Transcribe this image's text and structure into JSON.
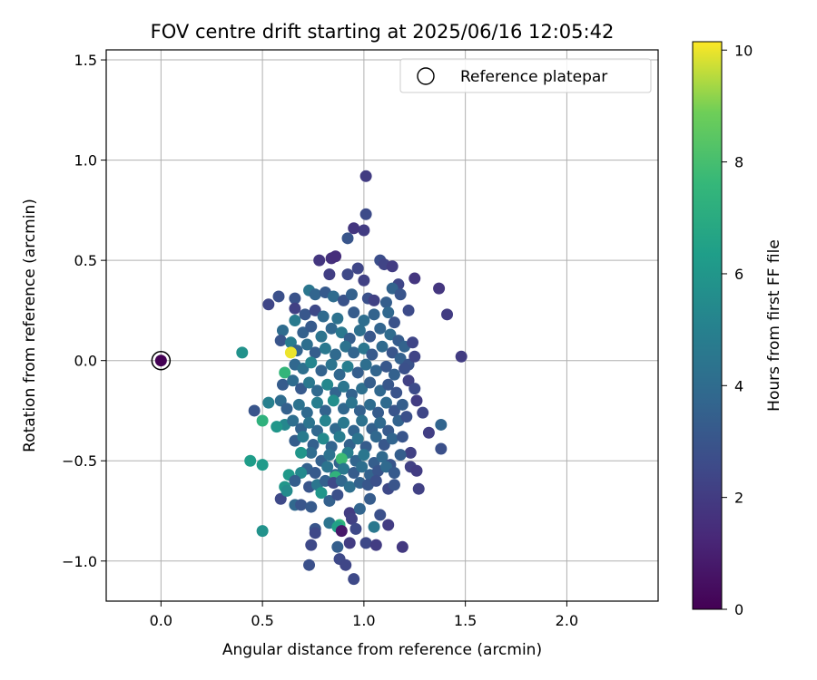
{
  "chart_data": {
    "type": "scatter",
    "title": "FOV centre drift starting at 2025/06/16 12:05:42",
    "xlabel": "Angular distance from reference (arcmin)",
    "ylabel": "Rotation from reference (arcmin)",
    "xlim": [
      -0.27,
      2.45
    ],
    "ylim": [
      -1.2,
      1.55
    ],
    "xticks": [
      0.0,
      0.5,
      1.0,
      1.5,
      2.0
    ],
    "xtick_labels": [
      "0.0",
      "0.5",
      "1.0",
      "1.5",
      "2.0"
    ],
    "yticks": [
      -1.0,
      -0.5,
      0.0,
      0.5,
      1.0,
      1.5
    ],
    "ytick_labels": [
      "−1.0",
      "−0.5",
      "0.0",
      "0.5",
      "1.0",
      "1.5"
    ],
    "grid": true,
    "legend": {
      "placement": "top-right",
      "entries": [
        "Reference platepar"
      ]
    },
    "reference": {
      "x": 0.0,
      "y": 0.0,
      "c": 0.0
    },
    "colorbar": {
      "label": "Hours from first FF file",
      "range": [
        0,
        10.15
      ],
      "ticks": [
        0,
        2,
        4,
        6,
        8,
        10
      ],
      "tick_labels": [
        "0",
        "2",
        "4",
        "6",
        "8",
        "10"
      ],
      "colormap": "viridis"
    },
    "series": [
      {
        "points": [
          [
            0.0,
            0.0,
            0.0
          ],
          [
            1.01,
            0.92,
            2.0
          ],
          [
            1.01,
            0.73,
            2.6
          ],
          [
            1.0,
            0.65,
            2.0
          ],
          [
            0.95,
            0.66,
            1.8
          ],
          [
            0.92,
            0.61,
            3.0
          ],
          [
            0.78,
            0.5,
            1.8
          ],
          [
            0.84,
            0.51,
            1.6
          ],
          [
            0.86,
            0.52,
            1.5
          ],
          [
            1.08,
            0.5,
            2.7
          ],
          [
            1.1,
            0.48,
            2.3
          ],
          [
            1.14,
            0.47,
            2.0
          ],
          [
            0.97,
            0.46,
            2.4
          ],
          [
            0.92,
            0.43,
            2.5
          ],
          [
            0.83,
            0.43,
            2.1
          ],
          [
            1.0,
            0.4,
            2.2
          ],
          [
            1.17,
            0.38,
            2.4
          ],
          [
            1.14,
            0.36,
            3.6
          ],
          [
            1.25,
            0.41,
            1.8
          ],
          [
            1.37,
            0.36,
            1.8
          ],
          [
            1.41,
            0.23,
            2.0
          ],
          [
            1.48,
            0.02,
            2.0
          ],
          [
            0.58,
            0.32,
            2.8
          ],
          [
            0.53,
            0.28,
            2.4
          ],
          [
            0.66,
            0.31,
            2.9
          ],
          [
            0.73,
            0.35,
            4.5
          ],
          [
            0.76,
            0.33,
            3.7
          ],
          [
            0.81,
            0.34,
            3.2
          ],
          [
            0.85,
            0.32,
            4.0
          ],
          [
            0.9,
            0.3,
            2.9
          ],
          [
            0.94,
            0.33,
            3.5
          ],
          [
            1.02,
            0.31,
            2.8
          ],
          [
            1.05,
            0.3,
            2.2
          ],
          [
            1.11,
            0.29,
            3.4
          ],
          [
            1.18,
            0.33,
            3.0
          ],
          [
            1.22,
            0.25,
            2.6
          ],
          [
            0.66,
            0.26,
            2.2
          ],
          [
            0.71,
            0.23,
            3.1
          ],
          [
            0.76,
            0.25,
            2.5
          ],
          [
            0.8,
            0.22,
            3.9
          ],
          [
            0.87,
            0.21,
            4.3
          ],
          [
            0.95,
            0.24,
            3.3
          ],
          [
            1.0,
            0.2,
            4.1
          ],
          [
            1.05,
            0.23,
            3.6
          ],
          [
            1.12,
            0.24,
            3.8
          ],
          [
            1.15,
            0.19,
            2.9
          ],
          [
            0.6,
            0.15,
            4.0
          ],
          [
            0.66,
            0.2,
            4.7
          ],
          [
            0.7,
            0.14,
            3.5
          ],
          [
            0.74,
            0.17,
            3.2
          ],
          [
            0.79,
            0.12,
            4.4
          ],
          [
            0.84,
            0.16,
            3.8
          ],
          [
            0.89,
            0.14,
            4.6
          ],
          [
            0.93,
            0.11,
            3.4
          ],
          [
            0.98,
            0.15,
            4.2
          ],
          [
            1.03,
            0.12,
            3.1
          ],
          [
            1.08,
            0.16,
            3.7
          ],
          [
            1.13,
            0.13,
            4.0
          ],
          [
            1.17,
            0.1,
            3.3
          ],
          [
            1.2,
            0.07,
            3.6
          ],
          [
            1.24,
            0.09,
            2.4
          ],
          [
            0.59,
            0.1,
            3.0
          ],
          [
            0.64,
            0.09,
            4.8
          ],
          [
            0.67,
            0.05,
            3.6
          ],
          [
            0.72,
            0.08,
            4.1
          ],
          [
            0.76,
            0.04,
            3.4
          ],
          [
            0.81,
            0.06,
            4.6
          ],
          [
            0.86,
            0.03,
            3.9
          ],
          [
            0.91,
            0.07,
            4.3
          ],
          [
            0.95,
            0.04,
            3.7
          ],
          [
            1.0,
            0.06,
            4.5
          ],
          [
            1.04,
            0.03,
            3.2
          ],
          [
            1.09,
            0.07,
            3.9
          ],
          [
            1.14,
            0.04,
            3.0
          ],
          [
            1.18,
            0.01,
            3.5
          ],
          [
            1.22,
            -0.02,
            2.9
          ],
          [
            1.25,
            0.02,
            2.3
          ],
          [
            0.4,
            0.04,
            5.8
          ],
          [
            0.64,
            0.04,
            10.0
          ],
          [
            0.61,
            -0.06,
            7.5
          ],
          [
            0.66,
            -0.02,
            3.8
          ],
          [
            0.7,
            -0.04,
            4.2
          ],
          [
            0.74,
            -0.01,
            5.2
          ],
          [
            0.79,
            -0.05,
            3.6
          ],
          [
            0.84,
            -0.02,
            4.4
          ],
          [
            0.88,
            -0.07,
            3.8
          ],
          [
            0.92,
            -0.03,
            4.9
          ],
          [
            0.97,
            -0.06,
            3.4
          ],
          [
            1.01,
            -0.02,
            4.1
          ],
          [
            1.06,
            -0.05,
            3.7
          ],
          [
            1.11,
            -0.03,
            3.1
          ],
          [
            1.15,
            -0.07,
            3.5
          ],
          [
            1.2,
            -0.04,
            2.8
          ],
          [
            0.6,
            -0.12,
            3.3
          ],
          [
            0.65,
            -0.1,
            4.0
          ],
          [
            0.69,
            -0.14,
            3.2
          ],
          [
            0.73,
            -0.11,
            4.6
          ],
          [
            0.77,
            -0.15,
            3.9
          ],
          [
            0.82,
            -0.12,
            5.3
          ],
          [
            0.86,
            -0.16,
            3.7
          ],
          [
            0.9,
            -0.13,
            4.5
          ],
          [
            0.94,
            -0.17,
            3.6
          ],
          [
            0.99,
            -0.14,
            4.2
          ],
          [
            1.03,
            -0.11,
            3.4
          ],
          [
            1.08,
            -0.15,
            3.8
          ],
          [
            1.12,
            -0.12,
            3.1
          ],
          [
            1.16,
            -0.16,
            2.9
          ],
          [
            1.22,
            -0.1,
            2.2
          ],
          [
            1.25,
            -0.14,
            2.6
          ],
          [
            0.53,
            -0.21,
            5.0
          ],
          [
            0.59,
            -0.2,
            4.0
          ],
          [
            0.62,
            -0.24,
            3.5
          ],
          [
            0.68,
            -0.22,
            4.3
          ],
          [
            0.72,
            -0.26,
            3.9
          ],
          [
            0.77,
            -0.21,
            4.9
          ],
          [
            0.81,
            -0.25,
            3.6
          ],
          [
            0.85,
            -0.2,
            5.6
          ],
          [
            0.9,
            -0.24,
            3.8
          ],
          [
            0.94,
            -0.21,
            4.4
          ],
          [
            0.98,
            -0.25,
            3.5
          ],
          [
            1.03,
            -0.22,
            4.0
          ],
          [
            1.07,
            -0.26,
            3.3
          ],
          [
            1.11,
            -0.21,
            3.9
          ],
          [
            1.15,
            -0.25,
            3.0
          ],
          [
            1.19,
            -0.22,
            3.4
          ],
          [
            1.26,
            -0.2,
            2.0
          ],
          [
            0.46,
            -0.25,
            3.0
          ],
          [
            0.61,
            -0.32,
            5.3
          ],
          [
            0.65,
            -0.3,
            4.1
          ],
          [
            0.69,
            -0.34,
            3.6
          ],
          [
            0.73,
            -0.31,
            4.4
          ],
          [
            0.77,
            -0.35,
            3.8
          ],
          [
            0.81,
            -0.3,
            5.1
          ],
          [
            0.86,
            -0.34,
            3.9
          ],
          [
            0.9,
            -0.31,
            4.6
          ],
          [
            0.95,
            -0.35,
            3.7
          ],
          [
            0.99,
            -0.3,
            4.3
          ],
          [
            1.04,
            -0.34,
            3.5
          ],
          [
            1.08,
            -0.31,
            3.9
          ],
          [
            1.12,
            -0.35,
            3.2
          ],
          [
            1.17,
            -0.3,
            3.6
          ],
          [
            1.21,
            -0.28,
            2.8
          ],
          [
            1.29,
            -0.26,
            2.4
          ],
          [
            1.32,
            -0.36,
            2.1
          ],
          [
            1.38,
            -0.32,
            3.7
          ],
          [
            0.5,
            -0.3,
            7.3
          ],
          [
            0.57,
            -0.33,
            6.0
          ],
          [
            0.66,
            -0.4,
            3.4
          ],
          [
            0.7,
            -0.38,
            4.7
          ],
          [
            0.75,
            -0.42,
            3.5
          ],
          [
            0.8,
            -0.39,
            5.4
          ],
          [
            0.84,
            -0.43,
            3.7
          ],
          [
            0.88,
            -0.38,
            4.8
          ],
          [
            0.93,
            -0.42,
            3.6
          ],
          [
            0.97,
            -0.39,
            4.4
          ],
          [
            1.01,
            -0.43,
            3.3
          ],
          [
            1.06,
            -0.38,
            3.8
          ],
          [
            1.1,
            -0.42,
            3.1
          ],
          [
            1.14,
            -0.39,
            3.7
          ],
          [
            1.19,
            -0.38,
            3.0
          ],
          [
            1.23,
            -0.46,
            2.2
          ],
          [
            1.38,
            -0.44,
            2.8
          ],
          [
            0.74,
            -0.46,
            4.0
          ],
          [
            0.79,
            -0.5,
            3.5
          ],
          [
            0.83,
            -0.47,
            4.3
          ],
          [
            0.88,
            -0.51,
            3.6
          ],
          [
            0.92,
            -0.46,
            4.9
          ],
          [
            0.96,
            -0.5,
            3.7
          ],
          [
            1.0,
            -0.47,
            4.5
          ],
          [
            1.05,
            -0.51,
            3.4
          ],
          [
            1.09,
            -0.48,
            3.9
          ],
          [
            1.13,
            -0.52,
            3.0
          ],
          [
            1.18,
            -0.47,
            3.4
          ],
          [
            0.69,
            -0.46,
            6.0
          ],
          [
            0.89,
            -0.49,
            7.8
          ],
          [
            0.44,
            -0.5,
            6.3
          ],
          [
            0.5,
            -0.52,
            6.2
          ],
          [
            0.72,
            -0.54,
            3.5
          ],
          [
            0.76,
            -0.56,
            3.2
          ],
          [
            0.82,
            -0.53,
            4.4
          ],
          [
            0.86,
            -0.57,
            3.8
          ],
          [
            0.9,
            -0.54,
            4.6
          ],
          [
            0.95,
            -0.56,
            3.3
          ],
          [
            0.99,
            -0.53,
            4.1
          ],
          [
            1.03,
            -0.57,
            3.6
          ],
          [
            1.07,
            -0.55,
            3.0
          ],
          [
            1.11,
            -0.53,
            3.9
          ],
          [
            1.15,
            -0.56,
            3.2
          ],
          [
            1.23,
            -0.53,
            2.2
          ],
          [
            1.26,
            -0.55,
            2.0
          ],
          [
            0.69,
            -0.56,
            5.4
          ],
          [
            0.63,
            -0.57,
            6.1
          ],
          [
            0.86,
            -0.58,
            7.4
          ],
          [
            0.61,
            -0.63,
            6.0
          ],
          [
            0.66,
            -0.6,
            3.4
          ],
          [
            0.73,
            -0.63,
            3.0
          ],
          [
            0.77,
            -0.62,
            4.5
          ],
          [
            0.81,
            -0.6,
            3.5
          ],
          [
            0.85,
            -0.61,
            2.5
          ],
          [
            0.89,
            -0.6,
            3.8
          ],
          [
            0.93,
            -0.63,
            4.2
          ],
          [
            0.98,
            -0.61,
            3.6
          ],
          [
            1.02,
            -0.62,
            3.1
          ],
          [
            1.06,
            -0.6,
            2.8
          ],
          [
            1.12,
            -0.64,
            2.5
          ],
          [
            1.15,
            -0.62,
            3.0
          ],
          [
            1.27,
            -0.64,
            2.2
          ],
          [
            0.59,
            -0.69,
            2.5
          ],
          [
            0.62,
            -0.65,
            5.5
          ],
          [
            0.66,
            -0.72,
            3.8
          ],
          [
            0.69,
            -0.72,
            3.0
          ],
          [
            0.74,
            -0.73,
            3.2
          ],
          [
            0.79,
            -0.66,
            6.0
          ],
          [
            0.83,
            -0.7,
            3.5
          ],
          [
            0.87,
            -0.67,
            2.8
          ],
          [
            0.93,
            -0.76,
            2.0
          ],
          [
            0.98,
            -0.74,
            3.7
          ],
          [
            1.03,
            -0.69,
            3.3
          ],
          [
            1.08,
            -0.77,
            2.8
          ],
          [
            0.76,
            -0.84,
            3.0
          ],
          [
            0.76,
            -0.86,
            2.5
          ],
          [
            0.83,
            -0.81,
            4.4
          ],
          [
            0.88,
            -0.82,
            7.4
          ],
          [
            0.87,
            -0.83,
            6.5
          ],
          [
            0.89,
            -0.85,
            0.7
          ],
          [
            0.94,
            -0.79,
            2.2
          ],
          [
            0.96,
            -0.84,
            2.5
          ],
          [
            1.05,
            -0.83,
            4.6
          ],
          [
            1.12,
            -0.82,
            2.0
          ],
          [
            0.5,
            -0.85,
            5.8
          ],
          [
            0.74,
            -0.92,
            2.5
          ],
          [
            0.87,
            -0.93,
            3.4
          ],
          [
            0.93,
            -0.91,
            2.0
          ],
          [
            1.01,
            -0.91,
            2.5
          ],
          [
            1.06,
            -0.92,
            2.0
          ],
          [
            1.19,
            -0.93,
            1.9
          ],
          [
            0.73,
            -1.02,
            2.8
          ],
          [
            0.88,
            -0.99,
            2.5
          ],
          [
            0.91,
            -1.02,
            2.4
          ],
          [
            0.95,
            -1.09,
            2.5
          ]
        ]
      }
    ]
  }
}
